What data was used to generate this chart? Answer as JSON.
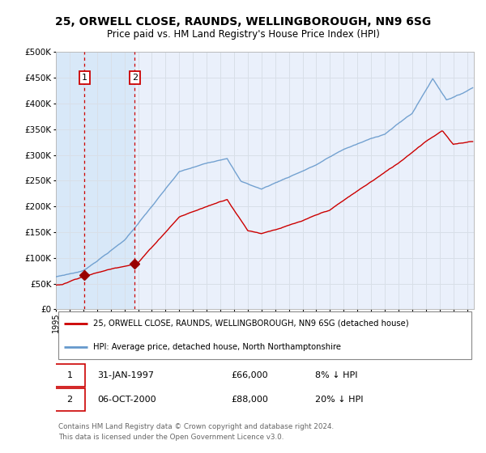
{
  "title": "25, ORWELL CLOSE, RAUNDS, WELLINGBOROUGH, NN9 6SG",
  "subtitle": "Price paid vs. HM Land Registry's House Price Index (HPI)",
  "background_color": "#ffffff",
  "plot_bg_color": "#eaf0fb",
  "grid_color": "#d8dfe8",
  "ylim": [
    0,
    500000
  ],
  "yticks": [
    0,
    50000,
    100000,
    150000,
    200000,
    250000,
    300000,
    350000,
    400000,
    450000,
    500000
  ],
  "xlim_start": 1995.0,
  "xlim_end": 2025.5,
  "transaction1_x": 1997.083,
  "transaction1_y": 66000,
  "transaction1_label": "1",
  "transaction2_x": 2000.75,
  "transaction2_y": 88000,
  "transaction2_label": "2",
  "red_line_color": "#cc0000",
  "blue_line_color": "#6699cc",
  "marker_color": "#990000",
  "dashed_line_color": "#cc0000",
  "legend_line1": "25, ORWELL CLOSE, RAUNDS, WELLINGBOROUGH, NN9 6SG (detached house)",
  "legend_line2": "HPI: Average price, detached house, North Northamptonshire",
  "table_row1": [
    "1",
    "31-JAN-1997",
    "£66,000",
    "8% ↓ HPI"
  ],
  "table_row2": [
    "2",
    "06-OCT-2000",
    "£88,000",
    "20% ↓ HPI"
  ],
  "footer": "Contains HM Land Registry data © Crown copyright and database right 2024.\nThis data is licensed under the Open Government Licence v3.0.",
  "highlight_color": "#d8e8f8"
}
